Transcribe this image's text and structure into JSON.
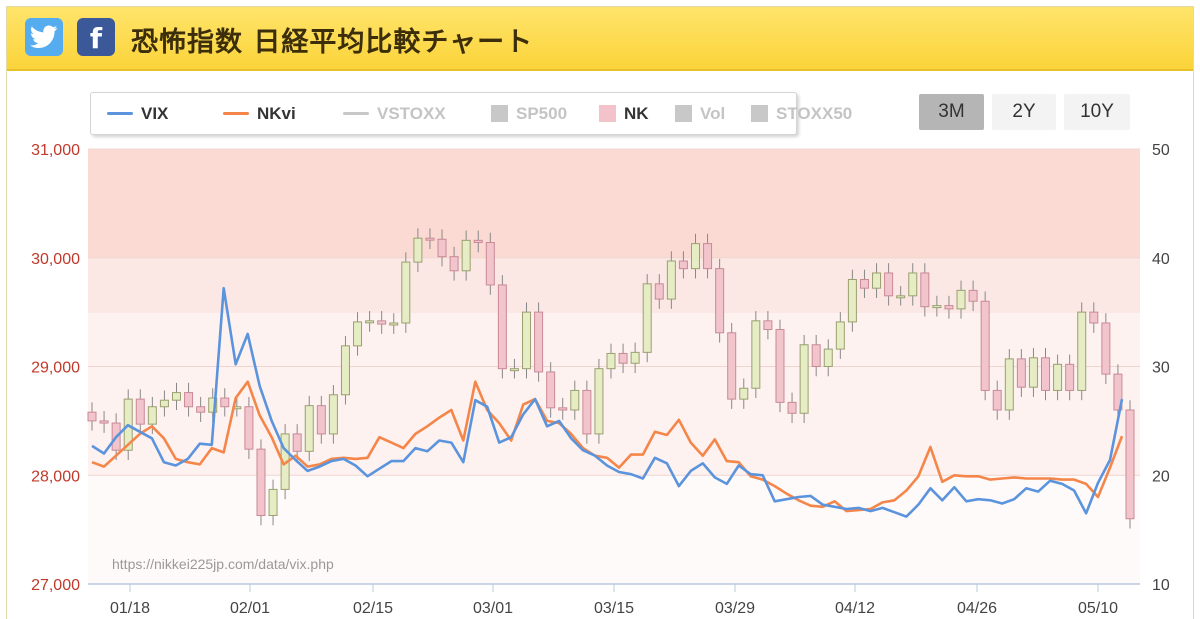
{
  "header": {
    "title": "恐怖指数 日経平均比較チャート",
    "twitter_icon": "twitter-icon",
    "facebook_icon": "facebook-icon"
  },
  "range_buttons": [
    {
      "label": "3M",
      "active": true
    },
    {
      "label": "2Y",
      "active": false
    },
    {
      "label": "10Y",
      "active": false
    }
  ],
  "watermark": "https://nikkei225jp.com/data/vix.php",
  "colors": {
    "vix": "#5b94dd",
    "nkvi": "#f5864a",
    "candle_up": "#e6ecc4",
    "candle_down": "#f2c4cc",
    "zone_high": "#fadad2",
    "zone_mid": "#fbe8e4",
    "zone_low": "#fdf2f0",
    "zone_base": "#fffafa"
  },
  "chart_data": {
    "type": "line",
    "legend": [
      {
        "name": "VIX",
        "kind": "line",
        "color": "#5b94dd",
        "enabled": true
      },
      {
        "name": "NKvi",
        "kind": "line",
        "color": "#f5864a",
        "enabled": true
      },
      {
        "name": "VSTOXX",
        "kind": "line",
        "color": "#c8c8c8",
        "enabled": false
      },
      {
        "name": "SP500",
        "kind": "box",
        "color": "#c8c8c8",
        "enabled": false
      },
      {
        "name": "NK",
        "kind": "box",
        "color": "#f4c2cb",
        "enabled": true
      },
      {
        "name": "Vol",
        "kind": "box",
        "color": "#c8c8c8",
        "enabled": false
      },
      {
        "name": "STOXX50",
        "kind": "box",
        "color": "#c8c8c8",
        "enabled": false
      }
    ],
    "x_ticks": [
      "01/18",
      "02/01",
      "02/15",
      "03/01",
      "03/15",
      "03/29",
      "04/12",
      "04/26",
      "05/10"
    ],
    "left_axis": {
      "ticks": [
        "31,000",
        "30,000",
        "29,000",
        "28,000",
        "27,000"
      ],
      "range": [
        27000,
        31000
      ]
    },
    "right_axis": {
      "ticks": [
        "50",
        "40",
        "30",
        "20",
        "10"
      ],
      "range": [
        10,
        50
      ]
    },
    "zones_right_units": [
      [
        40,
        50
      ],
      [
        34.9,
        40
      ],
      [
        30,
        34.9
      ],
      [
        20,
        30
      ],
      [
        10,
        20
      ]
    ],
    "series": [
      {
        "name": "VIX",
        "axis": "right",
        "values": [
          22.7,
          22.0,
          23.5,
          24.6,
          24.0,
          23.4,
          21.2,
          20.9,
          21.5,
          22.9,
          22.8,
          37.2,
          30.2,
          33.0,
          28.2,
          25.0,
          22.5,
          21.4,
          20.4,
          20.8,
          21.3,
          21.5,
          20.9,
          19.9,
          20.6,
          21.3,
          21.3,
          22.5,
          22.2,
          23.2,
          23.0,
          21.2,
          26.9,
          26.3,
          23.0,
          23.5,
          25.6,
          27.0,
          24.5,
          25.0,
          23.4,
          22.3,
          21.8,
          20.9,
          20.3,
          20.1,
          19.7,
          21.6,
          21.1,
          19.0,
          20.4,
          21.1,
          19.8,
          19.2,
          20.9,
          20.1,
          20.0,
          17.6,
          17.8,
          18.0,
          18.1,
          17.3,
          17.1,
          16.9,
          17.0,
          16.7,
          17.0,
          16.6,
          16.2,
          17.3,
          18.8,
          17.7,
          18.9,
          17.6,
          17.8,
          17.7,
          17.4,
          17.8,
          18.8,
          18.5,
          19.5,
          19.2,
          18.6,
          16.5,
          19.3,
          21.4,
          27.0
        ]
      },
      {
        "name": "NKvi",
        "axis": "right",
        "values": [
          21.2,
          20.8,
          21.8,
          22.8,
          23.8,
          24.5,
          23.4,
          21.5,
          21.2,
          21.0,
          22.5,
          22.1,
          27.1,
          28.6,
          25.5,
          23.5,
          21.0,
          21.8,
          20.8,
          21.0,
          21.5,
          21.6,
          21.5,
          21.6,
          23.5,
          23.0,
          22.5,
          23.8,
          24.5,
          25.3,
          26.0,
          23.2,
          28.6,
          26.0,
          24.8,
          23.2,
          26.5,
          27.0,
          25.0,
          24.8,
          23.8,
          22.5,
          21.8,
          21.6,
          20.7,
          21.9,
          21.9,
          24.0,
          23.7,
          25.1,
          23.0,
          21.8,
          23.3,
          21.3,
          21.2,
          19.9,
          19.6,
          19.0,
          18.3,
          17.7,
          17.2,
          17.1,
          17.6,
          16.7,
          16.8,
          16.9,
          17.5,
          17.7,
          18.6,
          19.9,
          22.6,
          19.4,
          20.0,
          19.9,
          19.9,
          19.6,
          19.7,
          19.8,
          19.7,
          19.7,
          19.7,
          19.6,
          19.6,
          19.2,
          18.0,
          20.7,
          23.6
        ]
      },
      {
        "name": "NK",
        "axis": "left",
        "kind": "candlestick",
        "ohlc_approx_close": [
          28500,
          28480,
          28230,
          28700,
          28470,
          28630,
          28690,
          28760,
          28630,
          28580,
          28710,
          28630,
          28630,
          28240,
          27630,
          27870,
          28380,
          28220,
          28640,
          28380,
          28740,
          29190,
          29410,
          29420,
          29390,
          29400,
          29960,
          30180,
          30170,
          30010,
          29880,
          30160,
          30140,
          29750,
          28980,
          28980,
          29500,
          28950,
          28620,
          28600,
          28780,
          28380,
          28980,
          29120,
          29030,
          29130,
          29760,
          29620,
          29970,
          29900,
          30130,
          29900,
          29310,
          28700,
          28800,
          29420,
          29340,
          28670,
          28570,
          29200,
          29000,
          29160,
          29410,
          29800,
          29720,
          29860,
          29650,
          29650,
          29860,
          29550,
          29560,
          29530,
          29700,
          29600,
          28780,
          28600,
          29070,
          28810,
          29080,
          28780,
          29020,
          28780,
          29500,
          29400,
          28930,
          28600,
          27600
        ]
      }
    ]
  }
}
